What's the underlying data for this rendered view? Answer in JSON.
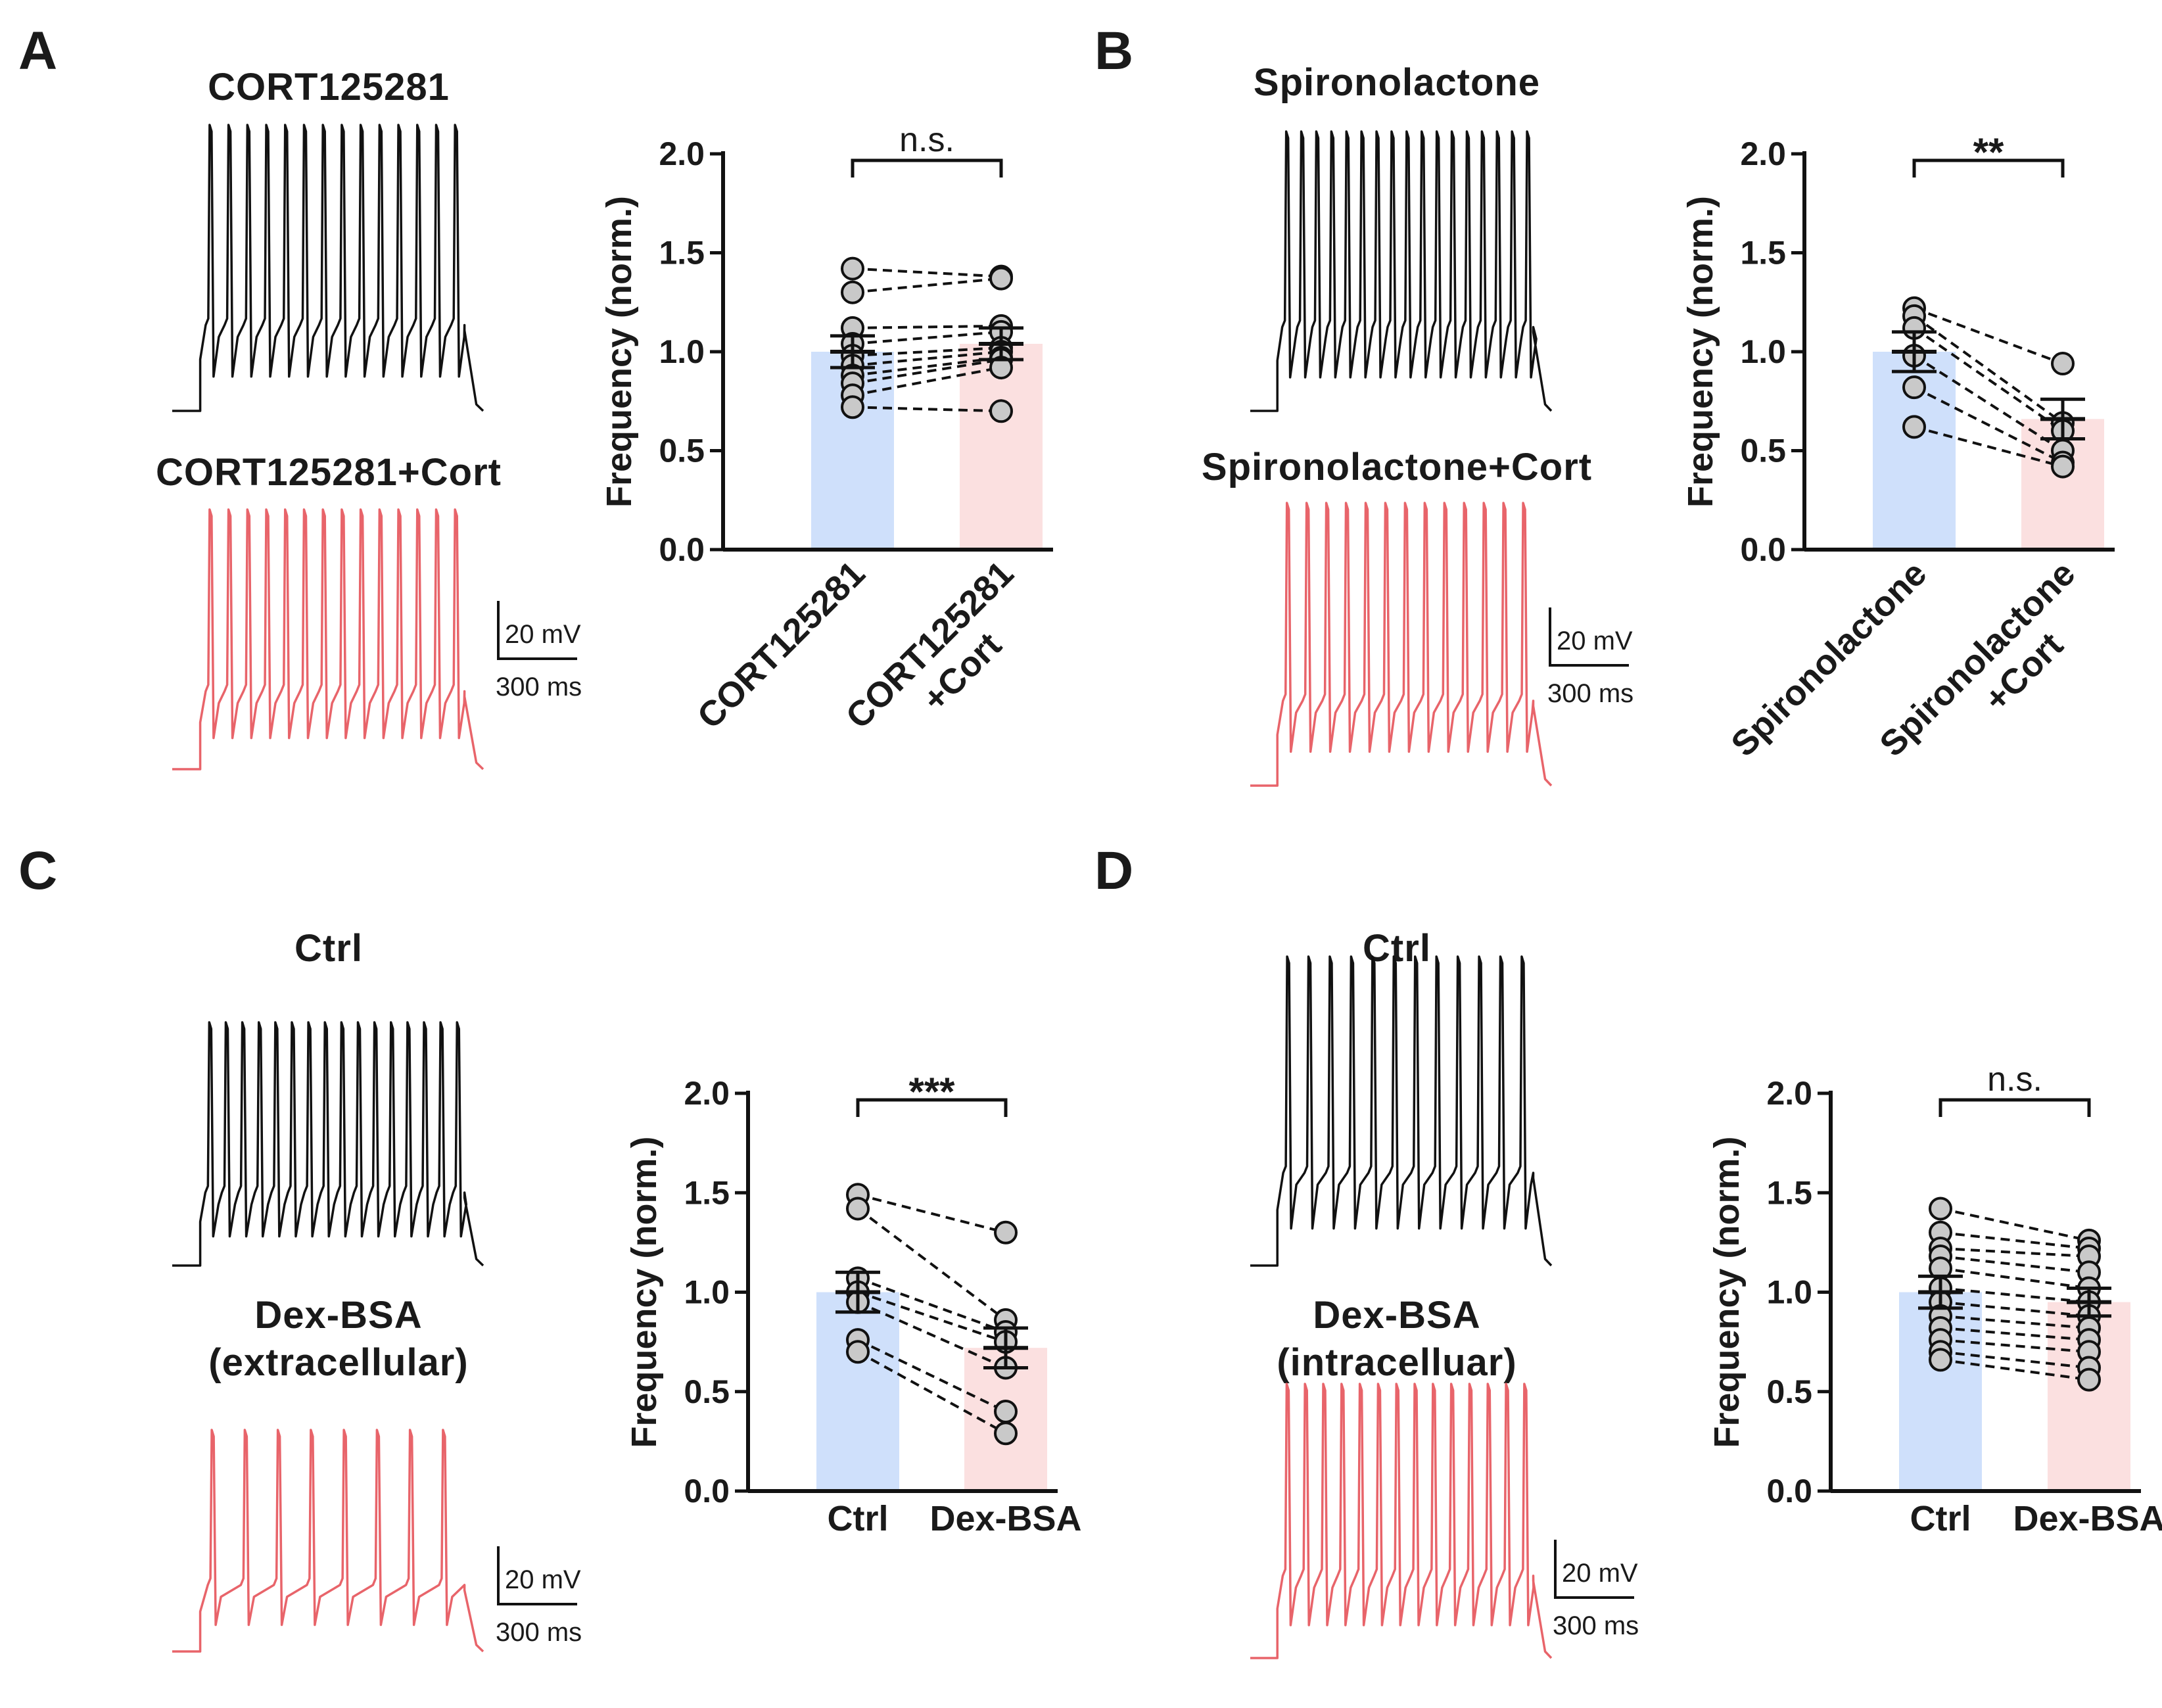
{
  "colors": {
    "ctrl_bar": "#cfe0fb",
    "treat_bar": "#fbe0e0",
    "ctrl_trace": "#111111",
    "treat_trace": "#e8646a",
    "point_fill": "#c9c9c9"
  },
  "panels": [
    {
      "label": "A",
      "trace_titles": [
        "CORT125281",
        "CORT125281+Cort"
      ],
      "scale_bar": {
        "voltage": "20 mV",
        "time": "300 ms"
      },
      "trace_spikes": {
        "ctrl": 14,
        "treat": 14
      }
    },
    {
      "label": "B",
      "trace_titles": [
        "Spironolactone",
        "Spironolactone+Cort"
      ],
      "scale_bar": {
        "voltage": "20 mV",
        "time": "300 ms"
      },
      "trace_spikes": {
        "ctrl": 17,
        "treat": 13
      }
    },
    {
      "label": "C",
      "trace_titles": [
        "Ctrl",
        "Dex-BSA",
        "(extracellular)"
      ],
      "scale_bar": {
        "voltage": "20 mV",
        "time": "300 ms"
      },
      "trace_spikes": {
        "ctrl": 16,
        "treat": 8
      }
    },
    {
      "label": "D",
      "trace_titles": [
        "Ctrl",
        "Dex-BSA",
        "(intracelluar)"
      ],
      "scale_bar": {
        "voltage": "20 mV",
        "time": "300 ms"
      },
      "trace_spikes": {
        "ctrl": 12,
        "treat": 14
      }
    }
  ],
  "chart_data": [
    {
      "panel": "A",
      "type": "bar",
      "ylabel": "Frequency (norm.)",
      "ylim": [
        0,
        2.0
      ],
      "yticks": [
        "0.0",
        "0.5",
        "1.0",
        "1.5",
        "2.0"
      ],
      "categories": [
        "CORT125281",
        "CORT125281\n+Cort"
      ],
      "category_lines": [
        [
          "CORT125281"
        ],
        [
          "CORT125281",
          "+Cort"
        ]
      ],
      "means": [
        1.0,
        1.04
      ],
      "sem": [
        0.08,
        0.08
      ],
      "significance": "n.s.",
      "pairs": [
        [
          1.42,
          1.38
        ],
        [
          1.3,
          1.37
        ],
        [
          1.12,
          1.13
        ],
        [
          1.04,
          1.1
        ],
        [
          0.98,
          1.02
        ],
        [
          0.93,
          1.0
        ],
        [
          0.88,
          0.97
        ],
        [
          0.84,
          0.96
        ],
        [
          0.78,
          0.92
        ],
        [
          0.72,
          0.7
        ]
      ]
    },
    {
      "panel": "B",
      "type": "bar",
      "ylabel": "Frequency (norm.)",
      "ylim": [
        0,
        2.0
      ],
      "yticks": [
        "0.0",
        "0.5",
        "1.0",
        "1.5",
        "2.0"
      ],
      "categories": [
        "Spironolactone",
        "Spironolactone\n+Cort"
      ],
      "category_lines": [
        [
          "Spironolactone"
        ],
        [
          "Spironolactone",
          "+Cort"
        ]
      ],
      "means": [
        1.0,
        0.66
      ],
      "sem": [
        0.1,
        0.1
      ],
      "significance": "**",
      "pairs": [
        [
          1.22,
          0.94
        ],
        [
          1.18,
          0.64
        ],
        [
          1.12,
          0.6
        ],
        [
          0.98,
          0.5
        ],
        [
          0.82,
          0.44
        ],
        [
          0.62,
          0.42
        ]
      ]
    },
    {
      "panel": "C",
      "type": "bar",
      "ylabel": "Frequency (norm.)",
      "ylim": [
        0,
        2.0
      ],
      "yticks": [
        "0.0",
        "0.5",
        "1.0",
        "1.5",
        "2.0"
      ],
      "categories": [
        "Ctrl",
        "Dex-BSA"
      ],
      "category_lines": [
        [
          "Ctrl"
        ],
        [
          "Dex-BSA"
        ]
      ],
      "means": [
        1.0,
        0.72
      ],
      "sem": [
        0.1,
        0.1
      ],
      "significance": "***",
      "pairs": [
        [
          1.49,
          1.3
        ],
        [
          1.42,
          0.86
        ],
        [
          1.07,
          0.8
        ],
        [
          1.0,
          0.75
        ],
        [
          0.95,
          0.62
        ],
        [
          0.76,
          0.4
        ],
        [
          0.7,
          0.29
        ]
      ]
    },
    {
      "panel": "D",
      "type": "bar",
      "ylabel": "Frequency (norm.)",
      "ylim": [
        0,
        2.0
      ],
      "yticks": [
        "0.0",
        "0.5",
        "1.0",
        "1.5",
        "2.0"
      ],
      "categories": [
        "Ctrl",
        "Dex-BSA"
      ],
      "category_lines": [
        [
          "Ctrl"
        ],
        [
          "Dex-BSA"
        ]
      ],
      "means": [
        1.0,
        0.95
      ],
      "sem": [
        0.08,
        0.07
      ],
      "significance": "n.s.",
      "pairs": [
        [
          1.42,
          1.26
        ],
        [
          1.3,
          1.22
        ],
        [
          1.22,
          1.18
        ],
        [
          1.18,
          1.1
        ],
        [
          1.12,
          1.02
        ],
        [
          1.02,
          0.95
        ],
        [
          0.95,
          0.88
        ],
        [
          0.88,
          0.82
        ],
        [
          0.82,
          0.76
        ],
        [
          0.76,
          0.7
        ],
        [
          0.7,
          0.62
        ],
        [
          0.66,
          0.56
        ]
      ]
    }
  ]
}
